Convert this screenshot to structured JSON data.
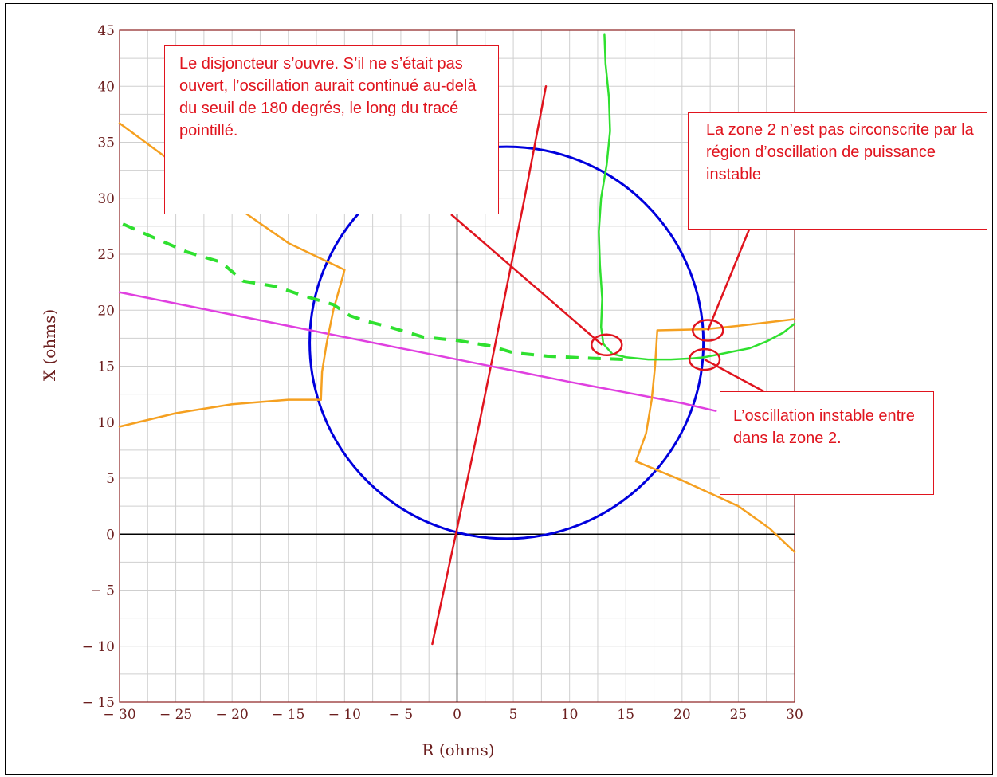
{
  "chart_data": {
    "type": "line",
    "xlabel": "R (ohms)",
    "ylabel": "X (ohms)",
    "xlim": [
      -30,
      30
    ],
    "ylim": [
      -15,
      45
    ],
    "grid": true,
    "xticks": [
      "− 30",
      "− 25",
      "− 20",
      "− 15",
      "− 10",
      "− 5",
      "0",
      "5",
      "10",
      "15",
      "20",
      "25",
      "30"
    ],
    "yticks": [
      "45",
      "40",
      "35",
      "30",
      "25",
      "20",
      "15",
      "10",
      "5",
      "0",
      "− 5",
      "− 10",
      "− 15"
    ],
    "series": [
      {
        "color": "#0000dd",
        "kind": "circle",
        "center": [
          4.4,
          17.1
        ],
        "radius": 17.5
      },
      {
        "color": "#e0141e",
        "kind": "line",
        "points": [
          [
            -2.2,
            -9.8
          ],
          [
            0,
            0.5
          ],
          [
            2,
            10
          ],
          [
            4,
            20
          ],
          [
            6,
            30
          ],
          [
            7.9,
            40
          ]
        ]
      },
      {
        "color": "#e040e0",
        "kind": "line",
        "points": [
          [
            -30,
            21.6
          ],
          [
            -20,
            19.6
          ],
          [
            -10,
            17.6
          ],
          [
            0,
            15.6
          ],
          [
            10,
            13.6
          ],
          [
            20,
            11.7
          ],
          [
            23,
            11.0
          ]
        ]
      },
      {
        "color": "#f5a020",
        "kind": "line",
        "points": [
          [
            -30,
            36.7
          ],
          [
            -25,
            33
          ],
          [
            -20,
            29.5
          ],
          [
            -15,
            26
          ],
          [
            -10,
            23.6
          ],
          [
            -10.3,
            22.5
          ],
          [
            -11,
            20
          ],
          [
            -11.6,
            17
          ],
          [
            -12,
            14.5
          ],
          [
            -12.1,
            12
          ]
        ]
      },
      {
        "color": "#f5a020",
        "kind": "line",
        "points": [
          [
            -12.1,
            12
          ],
          [
            -15,
            12
          ],
          [
            -20,
            11.6
          ],
          [
            -25,
            10.8
          ],
          [
            -30,
            9.6
          ]
        ]
      },
      {
        "color": "#f5a020",
        "kind": "line",
        "points": [
          [
            30,
            19.2
          ],
          [
            25,
            18.6
          ],
          [
            22,
            18.3
          ],
          [
            17.8,
            18.2
          ],
          [
            17.6,
            15
          ],
          [
            17.3,
            12
          ],
          [
            16.8,
            9
          ],
          [
            15.9,
            6.5
          ]
        ]
      },
      {
        "color": "#f5a020",
        "kind": "line",
        "points": [
          [
            15.9,
            6.5
          ],
          [
            20,
            4.8
          ],
          [
            25,
            2.5
          ],
          [
            27.8,
            0.5
          ],
          [
            30,
            -1.6
          ]
        ]
      },
      {
        "color": "#2fe02f",
        "kind": "line",
        "points": [
          [
            13.1,
            44.6
          ],
          [
            13.2,
            42
          ],
          [
            13.5,
            39
          ],
          [
            13.6,
            36
          ],
          [
            13.3,
            33
          ],
          [
            12.8,
            30
          ],
          [
            12.6,
            27
          ],
          [
            12.7,
            24
          ],
          [
            12.9,
            21
          ],
          [
            12.8,
            18.5
          ],
          [
            13,
            17
          ],
          [
            13.8,
            16.1
          ],
          [
            15,
            15.8
          ],
          [
            17,
            15.6
          ],
          [
            19,
            15.6
          ],
          [
            21,
            15.7
          ],
          [
            22,
            15.8
          ],
          [
            24,
            16.2
          ],
          [
            26,
            16.6
          ],
          [
            27.5,
            17.2
          ],
          [
            29,
            18
          ],
          [
            30,
            18.8
          ]
        ]
      },
      {
        "color": "#2fe02f",
        "kind": "dashed",
        "points": [
          [
            -29.7,
            27.7
          ],
          [
            -27,
            26.5
          ],
          [
            -24,
            25.2
          ],
          [
            -21,
            24.3
          ],
          [
            -19,
            22.6
          ],
          [
            -16,
            22.1
          ],
          [
            -14,
            21.4
          ],
          [
            -11,
            20.5
          ],
          [
            -9.5,
            19.5
          ],
          [
            -8,
            19
          ],
          [
            -6,
            18.5
          ],
          [
            -3,
            17.6
          ],
          [
            0,
            17.3
          ],
          [
            3,
            16.8
          ],
          [
            5,
            16.2
          ],
          [
            8,
            15.9
          ],
          [
            12,
            15.7
          ],
          [
            15,
            15.6
          ]
        ]
      }
    ],
    "markers": [
      {
        "x": 13.3,
        "y": 16.9
      },
      {
        "x": 22.3,
        "y": 18.2
      },
      {
        "x": 22.0,
        "y": 15.6
      }
    ],
    "annotations": [
      {
        "text": "Le disjoncteur s’ouvre. S’il ne s’était pas ouvert, l’oscillation aurait continué au-delà du seuil de 180 degrés, le long du tracé pointillé.",
        "target": [
          12.9,
          16.9
        ]
      },
      {
        "text": "La zone 2 n’est pas circonscrite par la région d’oscillation de puissance instable",
        "target": [
          22.3,
          18.2
        ]
      },
      {
        "text": "L’oscillation instable entre dans la zone 2.",
        "target": [
          22.0,
          15.6
        ]
      }
    ]
  }
}
